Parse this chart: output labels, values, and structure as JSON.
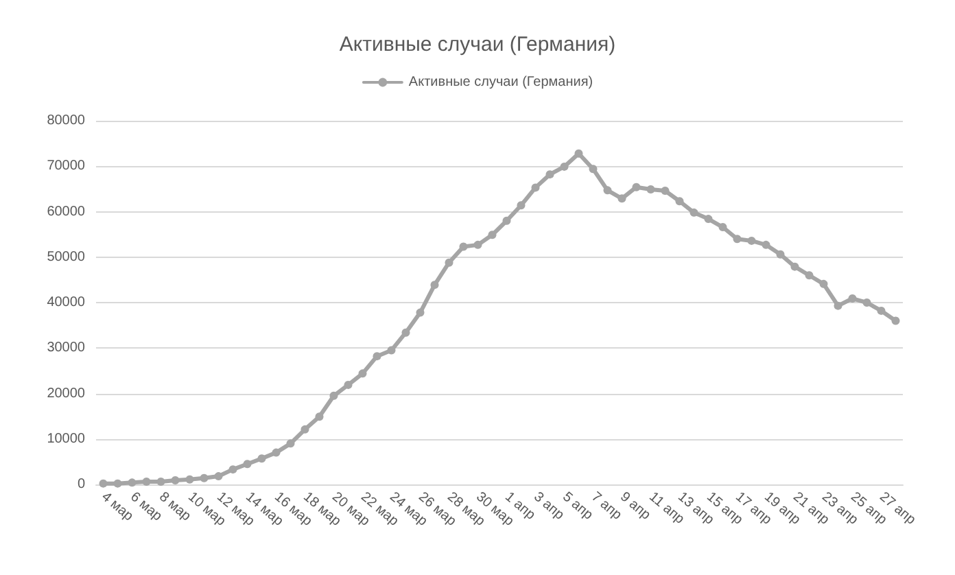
{
  "chart_data": {
    "type": "line",
    "title": "Активные случаи (Германия)",
    "categories": [
      "4 мар",
      null,
      "6 мар",
      null,
      "8 мар",
      null,
      "10 мар",
      null,
      "12 мар",
      null,
      "14 мар",
      null,
      "16 мар",
      null,
      "18 мар",
      null,
      "20 мар",
      null,
      "22 мар",
      null,
      "24 мар",
      null,
      "26 мар",
      null,
      "28 мар",
      null,
      "30 мар",
      null,
      "1 апр",
      null,
      "3 апр",
      null,
      "5 апр",
      null,
      "7 апр",
      null,
      "9 апр",
      null,
      "11 апр",
      null,
      "13 апр",
      null,
      "15 апр",
      null,
      "17 апр",
      null,
      "19 апр",
      null,
      "21 апр",
      null,
      "23 апр",
      null,
      "25 апр",
      null,
      "27 апр",
      null
    ],
    "series": [
      {
        "name": "Активные случаи (Германия)",
        "color": "#a5a5a5",
        "values": [
          200,
          200,
          400,
          600,
          600,
          900,
          1100,
          1400,
          1800,
          3300,
          4500,
          5700,
          7000,
          9000,
          12100,
          14900,
          19500,
          21900,
          24400,
          28200,
          29500,
          33400,
          37800,
          43900,
          48800,
          52300,
          52700,
          54900,
          58000,
          61400,
          65300,
          68200,
          69900,
          72800,
          69400,
          64700,
          62900,
          65400,
          64900,
          64600,
          62300,
          59800,
          58400,
          56600,
          54000,
          53600,
          52700,
          50600,
          47900,
          46000,
          44100,
          39300,
          40900,
          40000,
          38200,
          36000
        ]
      }
    ],
    "ylim": [
      0,
      80000
    ],
    "yticks": [
      0,
      10000,
      20000,
      30000,
      40000,
      50000,
      60000,
      70000,
      80000
    ],
    "grid": "y",
    "legend": "top",
    "marker": "circle",
    "line_style": "solid"
  }
}
